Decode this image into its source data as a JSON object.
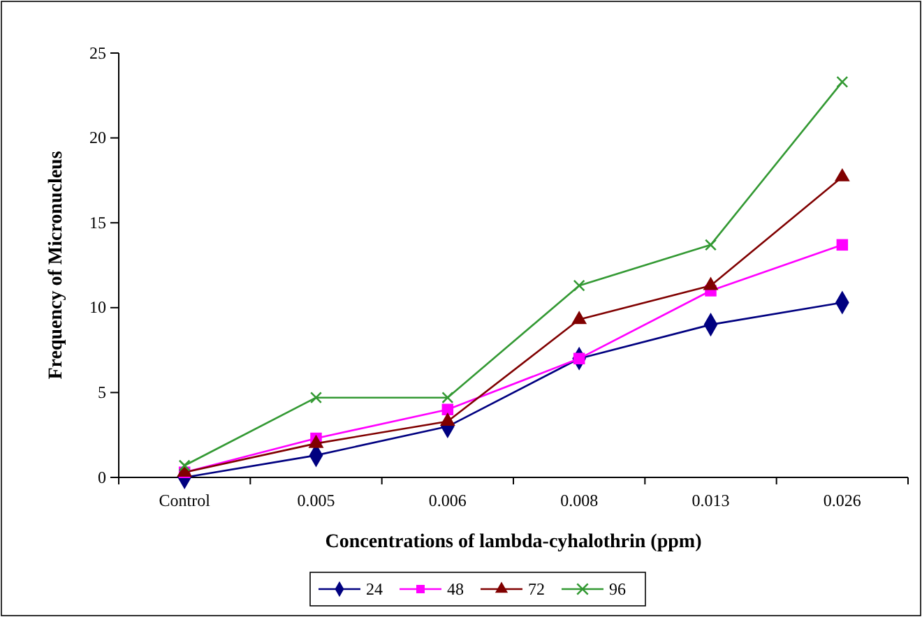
{
  "chart_data": {
    "type": "line",
    "xlabel": "Concentrations of lambda-cyhalothrin (ppm)",
    "ylabel": "Frequency of  Micronucleus",
    "categories": [
      "Control",
      "0.005",
      "0.006",
      "0.008",
      "0.013",
      "0.026"
    ],
    "series": [
      {
        "name": "24",
        "color": "#000080",
        "marker": "diamond",
        "values": [
          0,
          1.3,
          3,
          7,
          9,
          10.3
        ]
      },
      {
        "name": "48",
        "color": "#ff00ff",
        "marker": "square",
        "values": [
          0.3,
          2.3,
          4,
          7,
          11,
          13.7
        ]
      },
      {
        "name": "72",
        "color": "#800000",
        "marker": "triangle",
        "values": [
          0.3,
          2,
          3.3,
          9.3,
          11.3,
          17.7
        ]
      },
      {
        "name": "96",
        "color": "#339933",
        "marker": "cross",
        "values": [
          0.7,
          4.7,
          4.7,
          11.3,
          13.7,
          23.3
        ]
      }
    ],
    "ylim": [
      0,
      25
    ],
    "yticks": [
      0,
      5,
      10,
      15,
      20,
      25
    ],
    "grid": false,
    "legend": "bottom",
    "line_style": "solid"
  }
}
